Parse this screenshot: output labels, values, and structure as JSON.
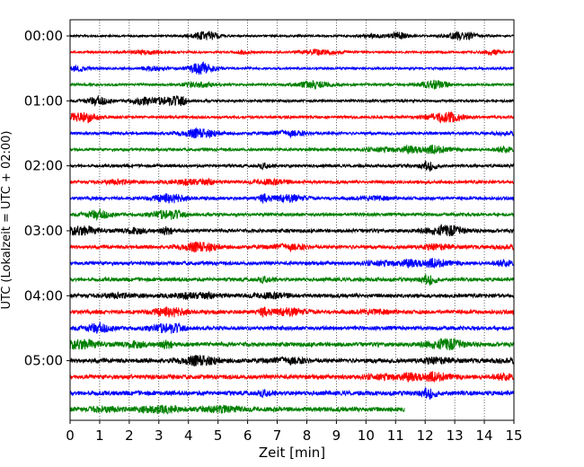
{
  "chart_data": {
    "type": "line",
    "subtype": "helicorder",
    "xlabel": "Zeit  [min]",
    "ylabel": "UTC (Lokalzeit = UTC + 02:00)",
    "xlim": [
      0,
      15
    ],
    "x_ticks": [
      "0",
      "1",
      "2",
      "3",
      "4",
      "5",
      "6",
      "7",
      "8",
      "9",
      "10",
      "11",
      "12",
      "13",
      "14",
      "15"
    ],
    "y_tick_labels": [
      "00:00",
      "01:00",
      "02:00",
      "03:00",
      "04:00",
      "05:00"
    ],
    "grid": "vertical dotted at each minute",
    "trace_interval_minutes": 15,
    "trace_colors_cycle": [
      "#000000",
      "#ff0000",
      "#0000ff",
      "#008000"
    ],
    "traces": [
      {
        "start": "00:00",
        "color": "#000000",
        "end_min": 15
      },
      {
        "start": "00:15",
        "color": "#ff0000",
        "end_min": 15
      },
      {
        "start": "00:30",
        "color": "#0000ff",
        "end_min": 15
      },
      {
        "start": "00:45",
        "color": "#008000",
        "end_min": 15
      },
      {
        "start": "01:00",
        "color": "#000000",
        "end_min": 15
      },
      {
        "start": "01:15",
        "color": "#ff0000",
        "end_min": 15
      },
      {
        "start": "01:30",
        "color": "#0000ff",
        "end_min": 15
      },
      {
        "start": "01:45",
        "color": "#008000",
        "end_min": 15
      },
      {
        "start": "02:00",
        "color": "#000000",
        "end_min": 15
      },
      {
        "start": "02:15",
        "color": "#ff0000",
        "end_min": 15
      },
      {
        "start": "02:30",
        "color": "#0000ff",
        "end_min": 15
      },
      {
        "start": "02:45",
        "color": "#008000",
        "end_min": 15
      },
      {
        "start": "03:00",
        "color": "#000000",
        "end_min": 15
      },
      {
        "start": "03:15",
        "color": "#ff0000",
        "end_min": 15
      },
      {
        "start": "03:30",
        "color": "#0000ff",
        "end_min": 15
      },
      {
        "start": "03:45",
        "color": "#008000",
        "end_min": 15
      },
      {
        "start": "04:00",
        "color": "#000000",
        "end_min": 15
      },
      {
        "start": "04:15",
        "color": "#ff0000",
        "end_min": 15
      },
      {
        "start": "04:30",
        "color": "#0000ff",
        "end_min": 15
      },
      {
        "start": "04:45",
        "color": "#008000",
        "end_min": 15
      },
      {
        "start": "05:00",
        "color": "#000000",
        "end_min": 15
      },
      {
        "start": "05:15",
        "color": "#ff0000",
        "end_min": 15
      },
      {
        "start": "05:30",
        "color": "#0000ff",
        "end_min": 15
      },
      {
        "start": "05:45",
        "color": "#008000",
        "end_min": 11.3
      }
    ]
  }
}
